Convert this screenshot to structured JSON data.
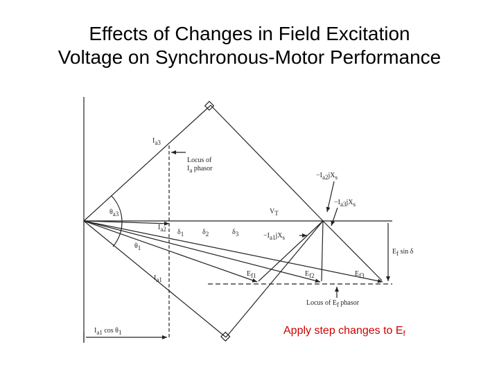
{
  "title": {
    "line1": "Effects of Changes in Field Excitation",
    "line2": "Voltage on Synchronous-Motor Performance"
  },
  "diagram": {
    "labels": {
      "ia3": "I",
      "ia3_sub": "a3",
      "locus_ia_line1": "Locus of",
      "locus_ia_line2": "I",
      "locus_ia_sub": "a",
      "locus_ia_tail": " phasor",
      "theta3": "θ",
      "theta3_sub": "a3",
      "ia2": "I",
      "ia2_sub": "a2",
      "delta1": "δ",
      "delta1_sub": "1",
      "delta2": "δ",
      "delta2_sub": "2",
      "delta3": "δ",
      "delta3_sub": "3",
      "theta1": "θ",
      "theta1_sub": "1",
      "ia1": "I",
      "ia1_sub": "a1",
      "ia1_cos": "I",
      "ia1_cos_sub": "a1",
      "ia1_cos_tail": " cos θ",
      "ia1_cos_sub2": "1",
      "vt": "V",
      "vt_sub": "T",
      "ia2jxs": "−I",
      "ia2jxs_sub": "a2",
      "ia2jxs_tail": "jX",
      "ia2jxs_sub2": "s",
      "ia3jxs": "−I",
      "ia3jxs_sub": "a3",
      "ia3jxs_tail": "jX",
      "ia3jxs_sub2": "s",
      "ia1jxs": "−I",
      "ia1jxs_sub": "a1",
      "ia1jxs_tail": "jX",
      "ia1jxs_sub2": "s",
      "ef1": "E",
      "ef1_sub": "f1",
      "ef2": "E",
      "ef2_sub": "f2",
      "ef3": "E",
      "ef3_sub": "f3",
      "efsind": "E",
      "efsind_sub": "f",
      "efsind_tail": " sin δ",
      "locus_ef_line": "Locus of E",
      "locus_ef_sub": "f",
      "locus_ef_tail": " phasor"
    },
    "colors": {
      "ink": "#222222",
      "note": "#cc0000"
    }
  },
  "note": {
    "text": "Apply step changes to E",
    "subscript": "f"
  }
}
